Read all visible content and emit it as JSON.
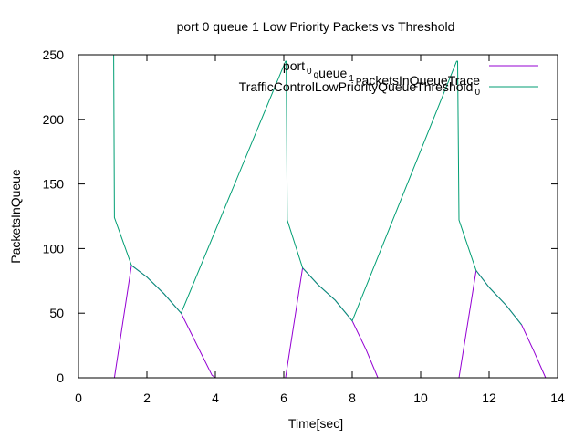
{
  "chart_data": {
    "type": "line",
    "title": "port 0 queue 1 Low Priority Packets vs Threshold",
    "xlabel": "Time[sec]",
    "ylabel": "PacketsInQueue",
    "xlim": [
      0,
      14
    ],
    "ylim": [
      0,
      250
    ],
    "x_ticks": [
      "0",
      "2",
      "4",
      "6",
      "8",
      "10",
      "12",
      "14"
    ],
    "y_ticks": [
      "0",
      "50",
      "100",
      "150",
      "200",
      "250"
    ],
    "grid": false,
    "legend_placement": "top-right",
    "colors": {
      "series1": "#9400d3",
      "series2": "#009e73",
      "frame": "#000000"
    },
    "series": [
      {
        "name": "port_0_queue_1_PacketsInQueueTrace",
        "legend_parts": [
          [
            "port",
            ""
          ],
          [
            "0",
            "sub"
          ],
          [
            "q",
            "sub"
          ],
          [
            "ueue",
            ""
          ],
          [
            "1",
            "sub"
          ],
          [
            "P",
            "sub"
          ],
          [
            "acketsInQueueTrace",
            ""
          ]
        ],
        "color": "#9400d3",
        "x": [
          1.0,
          1.05,
          1.55,
          2.0,
          2.5,
          3.0,
          3.3,
          3.6,
          3.9,
          4.0,
          5.0,
          6.0,
          6.05,
          6.55,
          7.0,
          7.5,
          8.0,
          8.4,
          8.75,
          9.9,
          11.05,
          11.12,
          11.62,
          12.0,
          12.5,
          12.95,
          13.3,
          13.65
        ],
        "y": [
          0,
          0,
          87,
          78,
          65,
          50,
          34,
          18,
          2,
          0,
          0,
          0,
          0,
          85,
          72,
          60,
          44,
          22,
          0,
          0,
          0,
          0,
          83,
          70,
          56,
          41,
          21,
          0
        ]
      },
      {
        "name": "TrafficControlLowPriorityQueueThreshold_0",
        "legend_parts": [
          [
            "TrafficControlLowPriorityQueueThreshold",
            ""
          ],
          [
            "0",
            "sub"
          ]
        ],
        "color": "#009e73",
        "x": [
          1.0,
          1.03,
          1.05,
          1.55,
          2.0,
          2.5,
          3.0,
          6.05,
          6.07,
          6.1,
          6.55,
          7.0,
          7.5,
          8.0,
          11.05,
          11.08,
          11.12,
          11.62,
          12.0,
          12.5,
          12.95
        ],
        "y": [
          250,
          250,
          124,
          87,
          78,
          65,
          50,
          245,
          245,
          122,
          85,
          72,
          60,
          44,
          245,
          245,
          122,
          83,
          70,
          56,
          41
        ]
      }
    ]
  }
}
